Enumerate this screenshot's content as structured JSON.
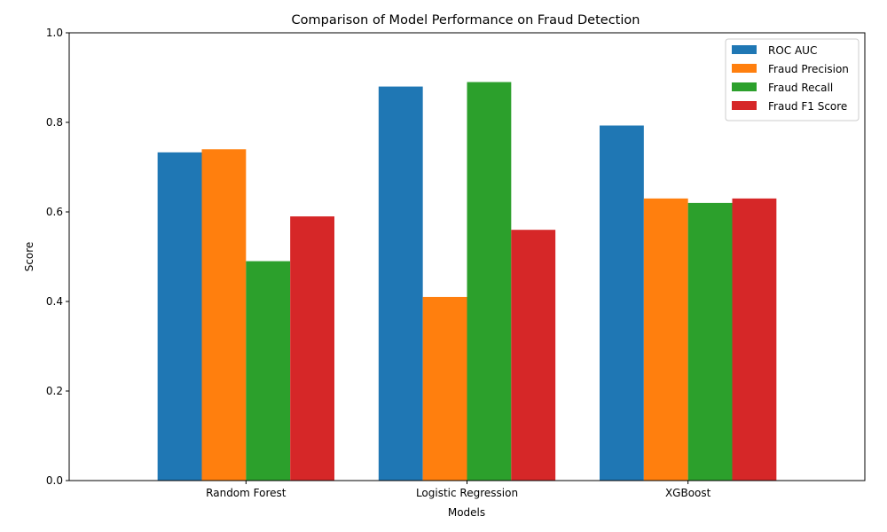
{
  "chart_data": {
    "type": "bar",
    "title": "Comparison of Model Performance on Fraud Detection",
    "xlabel": "Models",
    "ylabel": "Score",
    "ylim": [
      0,
      1.0
    ],
    "yticks": [
      "0.0",
      "0.2",
      "0.4",
      "0.6",
      "0.8",
      "1.0"
    ],
    "categories": [
      "Random Forest",
      "Logistic Regression",
      "XGBoost"
    ],
    "series": [
      {
        "name": "ROC AUC",
        "color": "#1f77b4",
        "values": [
          0.733,
          0.88,
          0.793
        ]
      },
      {
        "name": "Fraud Precision",
        "color": "#ff7f0e",
        "values": [
          0.74,
          0.41,
          0.63
        ]
      },
      {
        "name": "Fraud Recall",
        "color": "#2ca02c",
        "values": [
          0.49,
          0.89,
          0.62
        ]
      },
      {
        "name": "Fraud F1 Score",
        "color": "#d62728",
        "values": [
          0.59,
          0.56,
          0.63
        ]
      }
    ],
    "grid": false,
    "legend_position": "top-right"
  }
}
